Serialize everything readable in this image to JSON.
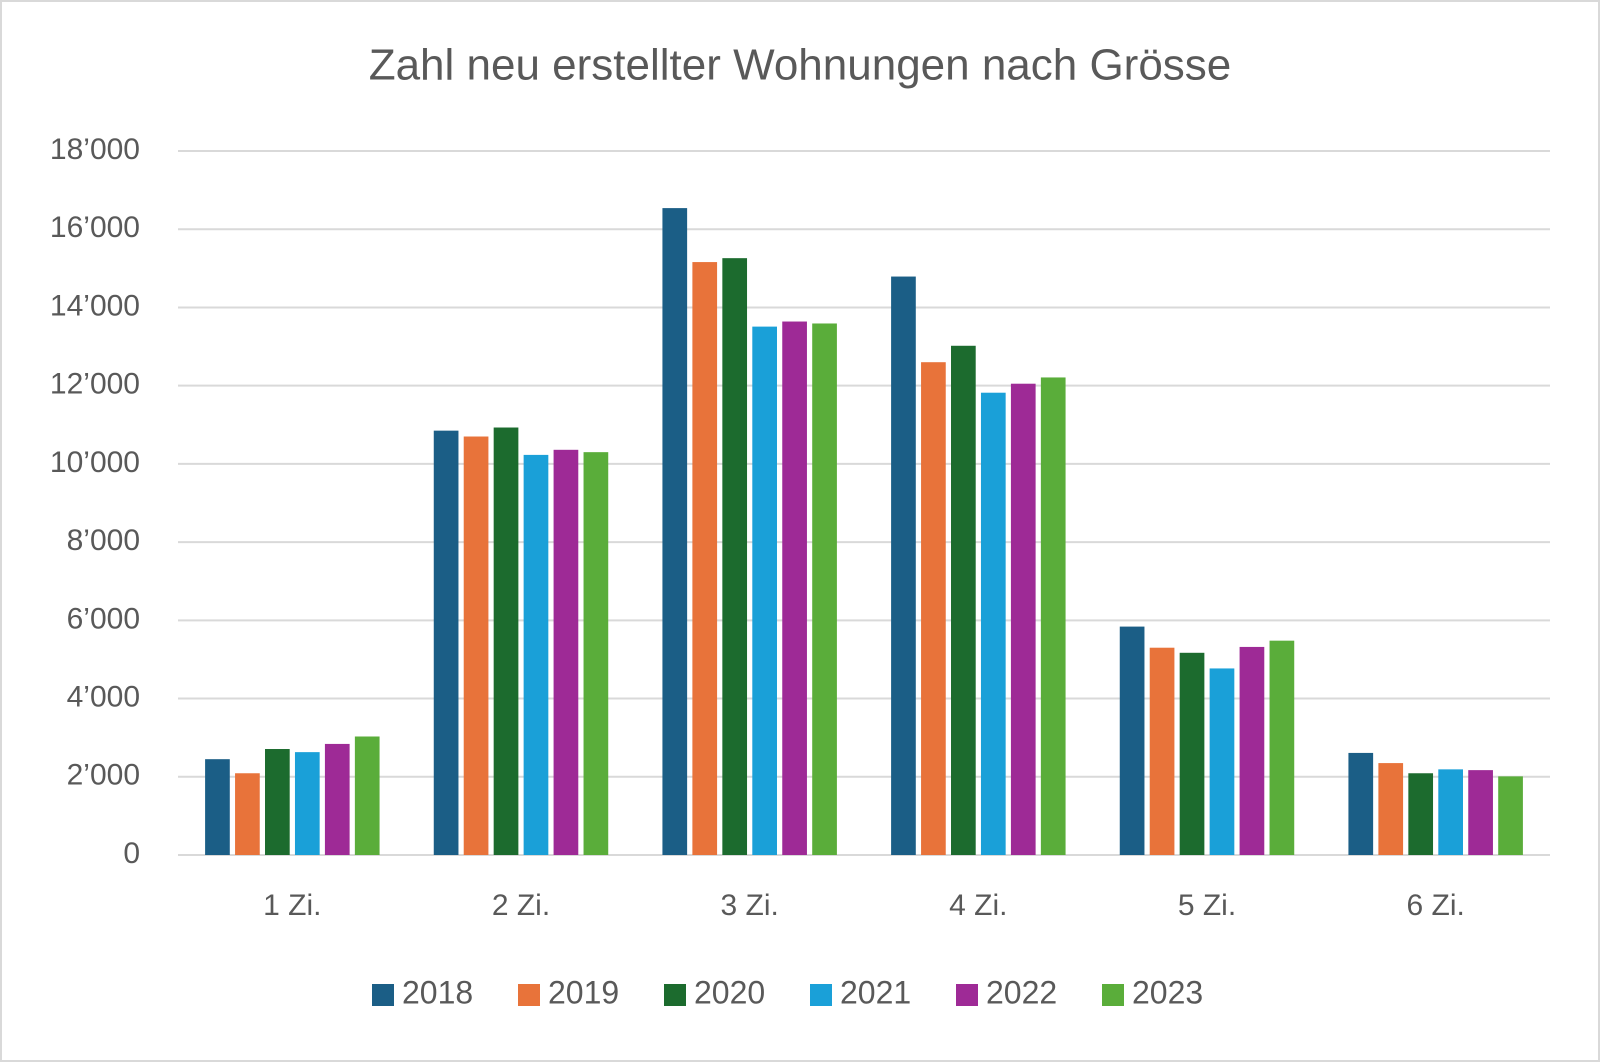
{
  "chart_data": {
    "type": "bar",
    "title": "Zahl neu erstellter Wohnungen nach Grösse",
    "categories": [
      "1 Zi.",
      "2 Zi.",
      "3 Zi.",
      "4 Zi.",
      "5 Zi.",
      "6 Zi."
    ],
    "series": [
      {
        "name": "2018",
        "color": "#1b5e86",
        "values": [
          2450,
          10850,
          16540,
          14790,
          5840,
          2610
        ]
      },
      {
        "name": "2019",
        "color": "#e8733a",
        "values": [
          2090,
          10700,
          15160,
          12600,
          5300,
          2350
        ]
      },
      {
        "name": "2020",
        "color": "#1c6b2e",
        "values": [
          2710,
          10930,
          15260,
          13020,
          5170,
          2090
        ]
      },
      {
        "name": "2021",
        "color": "#1aa0d8",
        "values": [
          2630,
          10230,
          13510,
          11820,
          4770,
          2190
        ]
      },
      {
        "name": "2022",
        "color": "#9e2a96",
        "values": [
          2840,
          10360,
          13640,
          12050,
          5320,
          2170
        ]
      },
      {
        "name": "2023",
        "color": "#5aad3a",
        "values": [
          3030,
          10300,
          13590,
          12210,
          5480,
          2010
        ]
      }
    ],
    "ylim": [
      0,
      18000
    ],
    "yticks": [
      0,
      {
        "value": 2000,
        "label": "2’000"
      },
      {
        "value": 4000,
        "label": "4’000"
      },
      {
        "value": 6000,
        "label": "6’000"
      },
      {
        "value": 8000,
        "label": "8’000"
      },
      {
        "value": 10000,
        "label": "10’000"
      },
      {
        "value": 12000,
        "label": "12’000"
      },
      {
        "value": 14000,
        "label": "14’000"
      },
      {
        "value": 16000,
        "label": "16’000"
      },
      {
        "value": 18000,
        "label": "18’000"
      }
    ],
    "grid": true,
    "legend": "bottom"
  }
}
